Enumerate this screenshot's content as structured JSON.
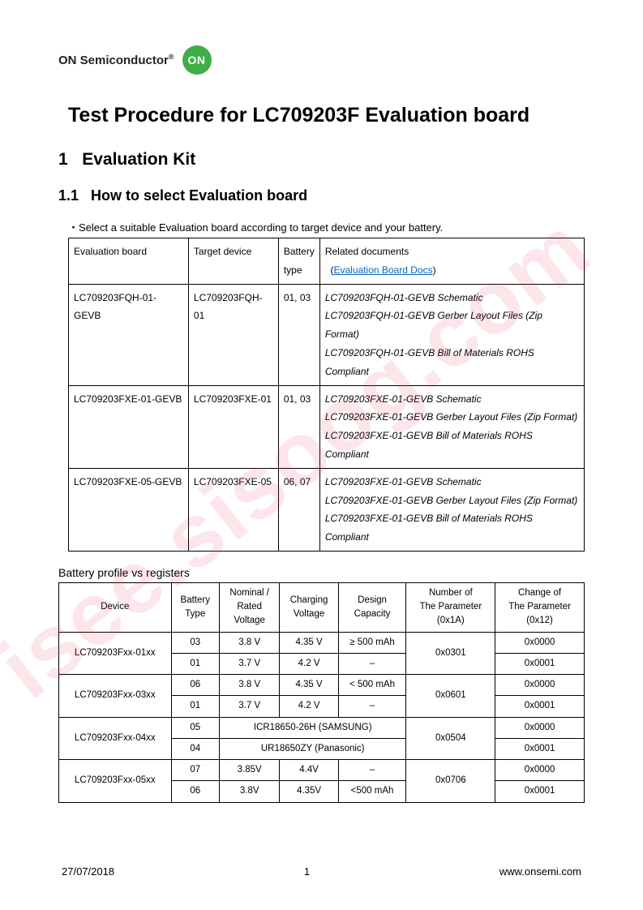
{
  "watermark": "isee.sisoog.com",
  "logo": {
    "brand": "ON Semiconductor",
    "reg": "®",
    "badge": "ON"
  },
  "title": "Test Procedure for LC709203F Evaluation board",
  "section1": {
    "num": "1",
    "label": "Evaluation Kit"
  },
  "section11": {
    "num": "1.1",
    "label": "How to select Evaluation board"
  },
  "instruction": "・Select a suitable Evaluation board according to target device and your battery.",
  "table1": {
    "headers": {
      "col1": "Evaluation board",
      "col2": "Target device",
      "col3_l1": "Battery",
      "col3_l2": "type",
      "col4_l1": "Related documents",
      "col4_link": "Evaluation Board Docs"
    },
    "rows": [
      {
        "board": "LC709203FQH-01-GEVB",
        "device": "LC709203FQH-01",
        "batt": "01, 03",
        "docs": [
          "LC709203FQH-01-GEVB Schematic",
          "LC709203FQH-01-GEVB Gerber Layout Files (Zip Format)",
          "LC709203FQH-01-GEVB Bill of Materials ROHS Compliant"
        ]
      },
      {
        "board": "LC709203FXE-01-GEVB",
        "device": "LC709203FXE-01",
        "batt": "01, 03",
        "docs": [
          "LC709203FXE-01-GEVB Schematic",
          "LC709203FXE-01-GEVB Gerber Layout Files (Zip Format)",
          "LC709203FXE-01-GEVB Bill of Materials ROHS Compliant"
        ]
      },
      {
        "board": "LC709203FXE-05-GEVB",
        "device": "LC709203FXE-05",
        "batt": "06, 07",
        "docs": [
          "LC709203FXE-01-GEVB Schematic",
          "LC709203FXE-01-GEVB Gerber Layout Files (Zip Format)",
          "LC709203FXE-01-GEVB Bill of Materials ROHS Compliant"
        ]
      }
    ]
  },
  "caption2": "Battery profile vs registers",
  "table2": {
    "headers": {
      "device": "Device",
      "batt_l1": "Battery",
      "batt_l2": "Type",
      "nom_l1": "Nominal /",
      "nom_l2": "Rated",
      "nom_l3": "Voltage",
      "chg_l1": "Charging",
      "chg_l2": "Voltage",
      "cap_l1": "Design",
      "cap_l2": "Capacity",
      "num_l1": "Number of",
      "num_l2": "The Parameter",
      "num_l3": "(0x1A)",
      "chng_l1": "Change of",
      "chng_l2": "The Parameter",
      "chng_l3": "(0x12)"
    },
    "groups": [
      {
        "device": "LC709203Fxx-01xx",
        "rows": [
          {
            "bt": "03",
            "nrv": "3.8 V",
            "cv": "4.35 V",
            "cap": "≥ 500 mAh",
            "chng": "0x0000"
          },
          {
            "bt": "01",
            "nrv": "3.7 V",
            "cv": "4.2 V",
            "cap": "–",
            "chng": "0x0001"
          }
        ],
        "num": "0x0301"
      },
      {
        "device": "LC709203Fxx-03xx",
        "rows": [
          {
            "bt": "06",
            "nrv": "3.8 V",
            "cv": "4.35 V",
            "cap": "< 500 mAh",
            "chng": "0x0000"
          },
          {
            "bt": "01",
            "nrv": "3.7 V",
            "cv": "4.2 V",
            "cap": "–",
            "chng": "0x0001"
          }
        ],
        "num": "0x0601"
      },
      {
        "device": "LC709203Fxx-04xx",
        "rows_merged": [
          {
            "bt": "05",
            "merged": "ICR18650-26H (SAMSUNG)",
            "chng": "0x0000"
          },
          {
            "bt": "04",
            "merged": "UR18650ZY (Panasonic)",
            "chng": "0x0001"
          }
        ],
        "num": "0x0504"
      },
      {
        "device": "LC709203Fxx-05xx",
        "rows": [
          {
            "bt": "07",
            "nrv": "3.85V",
            "cv": "4.4V",
            "cap": "–",
            "chng": "0x0000"
          },
          {
            "bt": "06",
            "nrv": "3.8V",
            "cv": "4.35V",
            "cap": "<500 mAh",
            "chng": "0x0001"
          }
        ],
        "num": "0x0706"
      }
    ]
  },
  "footer": {
    "date": "27/07/2018",
    "page": "1",
    "url": "www.onsemi.com"
  }
}
